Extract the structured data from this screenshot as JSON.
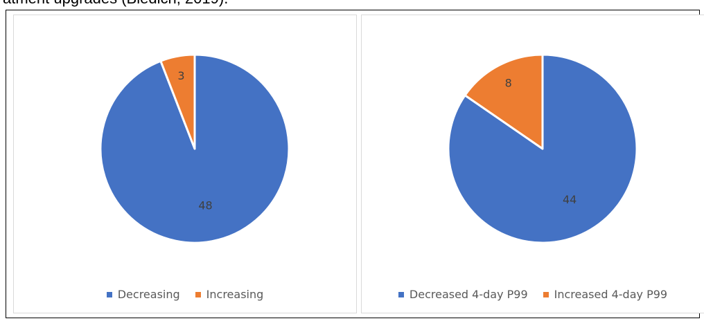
{
  "page": {
    "caption": "atment upgrades (Bledich, 2019)."
  },
  "colors": {
    "blue": "#4472C4",
    "orange": "#ED7D31",
    "label_text": "#404040",
    "legend_text": "#595959"
  },
  "chart_data": [
    {
      "type": "pie",
      "title": "",
      "categories": [
        "Decreasing",
        "Increasing"
      ],
      "values": [
        48,
        3
      ],
      "colors": [
        "#4472C4",
        "#ED7D31"
      ],
      "data_labels": [
        "48",
        "3"
      ],
      "legend_placement": "bottom"
    },
    {
      "type": "pie",
      "title": "",
      "categories": [
        "Decreased 4-day P99",
        "Increased 4-day P99"
      ],
      "values": [
        44,
        8
      ],
      "colors": [
        "#4472C4",
        "#ED7D31"
      ],
      "data_labels": [
        "44",
        "8"
      ],
      "legend_placement": "bottom"
    }
  ]
}
